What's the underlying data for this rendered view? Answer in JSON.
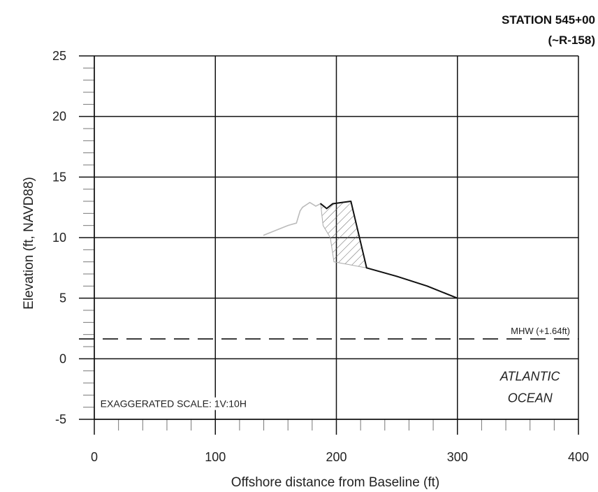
{
  "station": {
    "line1": "STATION 545+00",
    "line2": "(~R-158)"
  },
  "chart_data": {
    "type": "line",
    "xlabel": "Offshore distance from Baseline (ft)",
    "ylabel": "Elevation (ft, NAVD88)",
    "xlim": [
      0,
      400
    ],
    "ylim": [
      -5,
      25
    ],
    "x_ticks": [
      0,
      100,
      200,
      300,
      400
    ],
    "y_ticks": [
      -5,
      0,
      5,
      10,
      15,
      20,
      25
    ],
    "grid": true,
    "series": [
      {
        "style": "faint-gray",
        "x": [
          140,
          160,
          167,
          170,
          172,
          178,
          183,
          187,
          192,
          197,
          212,
          225,
          250,
          275,
          300
        ],
        "y": [
          10.2,
          11.0,
          11.2,
          12.2,
          12.5,
          12.9,
          12.6,
          12.8,
          12.4,
          12.8,
          13.0,
          7.5,
          6.8,
          6.0,
          5.0
        ]
      },
      {
        "style": "solid-black",
        "x": [
          187,
          192,
          197,
          212,
          225,
          250,
          275,
          300
        ],
        "y": [
          12.8,
          12.4,
          12.8,
          13.0,
          7.5,
          6.8,
          6.0,
          5.0
        ]
      }
    ],
    "hatched_region": {
      "x": [
        187,
        192,
        197,
        212,
        225,
        198,
        195,
        189
      ],
      "y": [
        12.8,
        12.4,
        12.8,
        13.0,
        7.5,
        8.0,
        10.0,
        11.0
      ]
    },
    "reference_lines": [
      {
        "y": 1.64,
        "style": "dashed",
        "label": "MHW (+1.64ft)"
      }
    ],
    "annotations": [
      {
        "text": "ATLANTIC",
        "x": 360,
        "y": -1.8
      },
      {
        "text": "OCEAN",
        "x": 360,
        "y": -3.6
      },
      {
        "text": "EXAGGERATED SCALE: 1V:10H",
        "x": 5,
        "y": -4.0
      }
    ]
  }
}
